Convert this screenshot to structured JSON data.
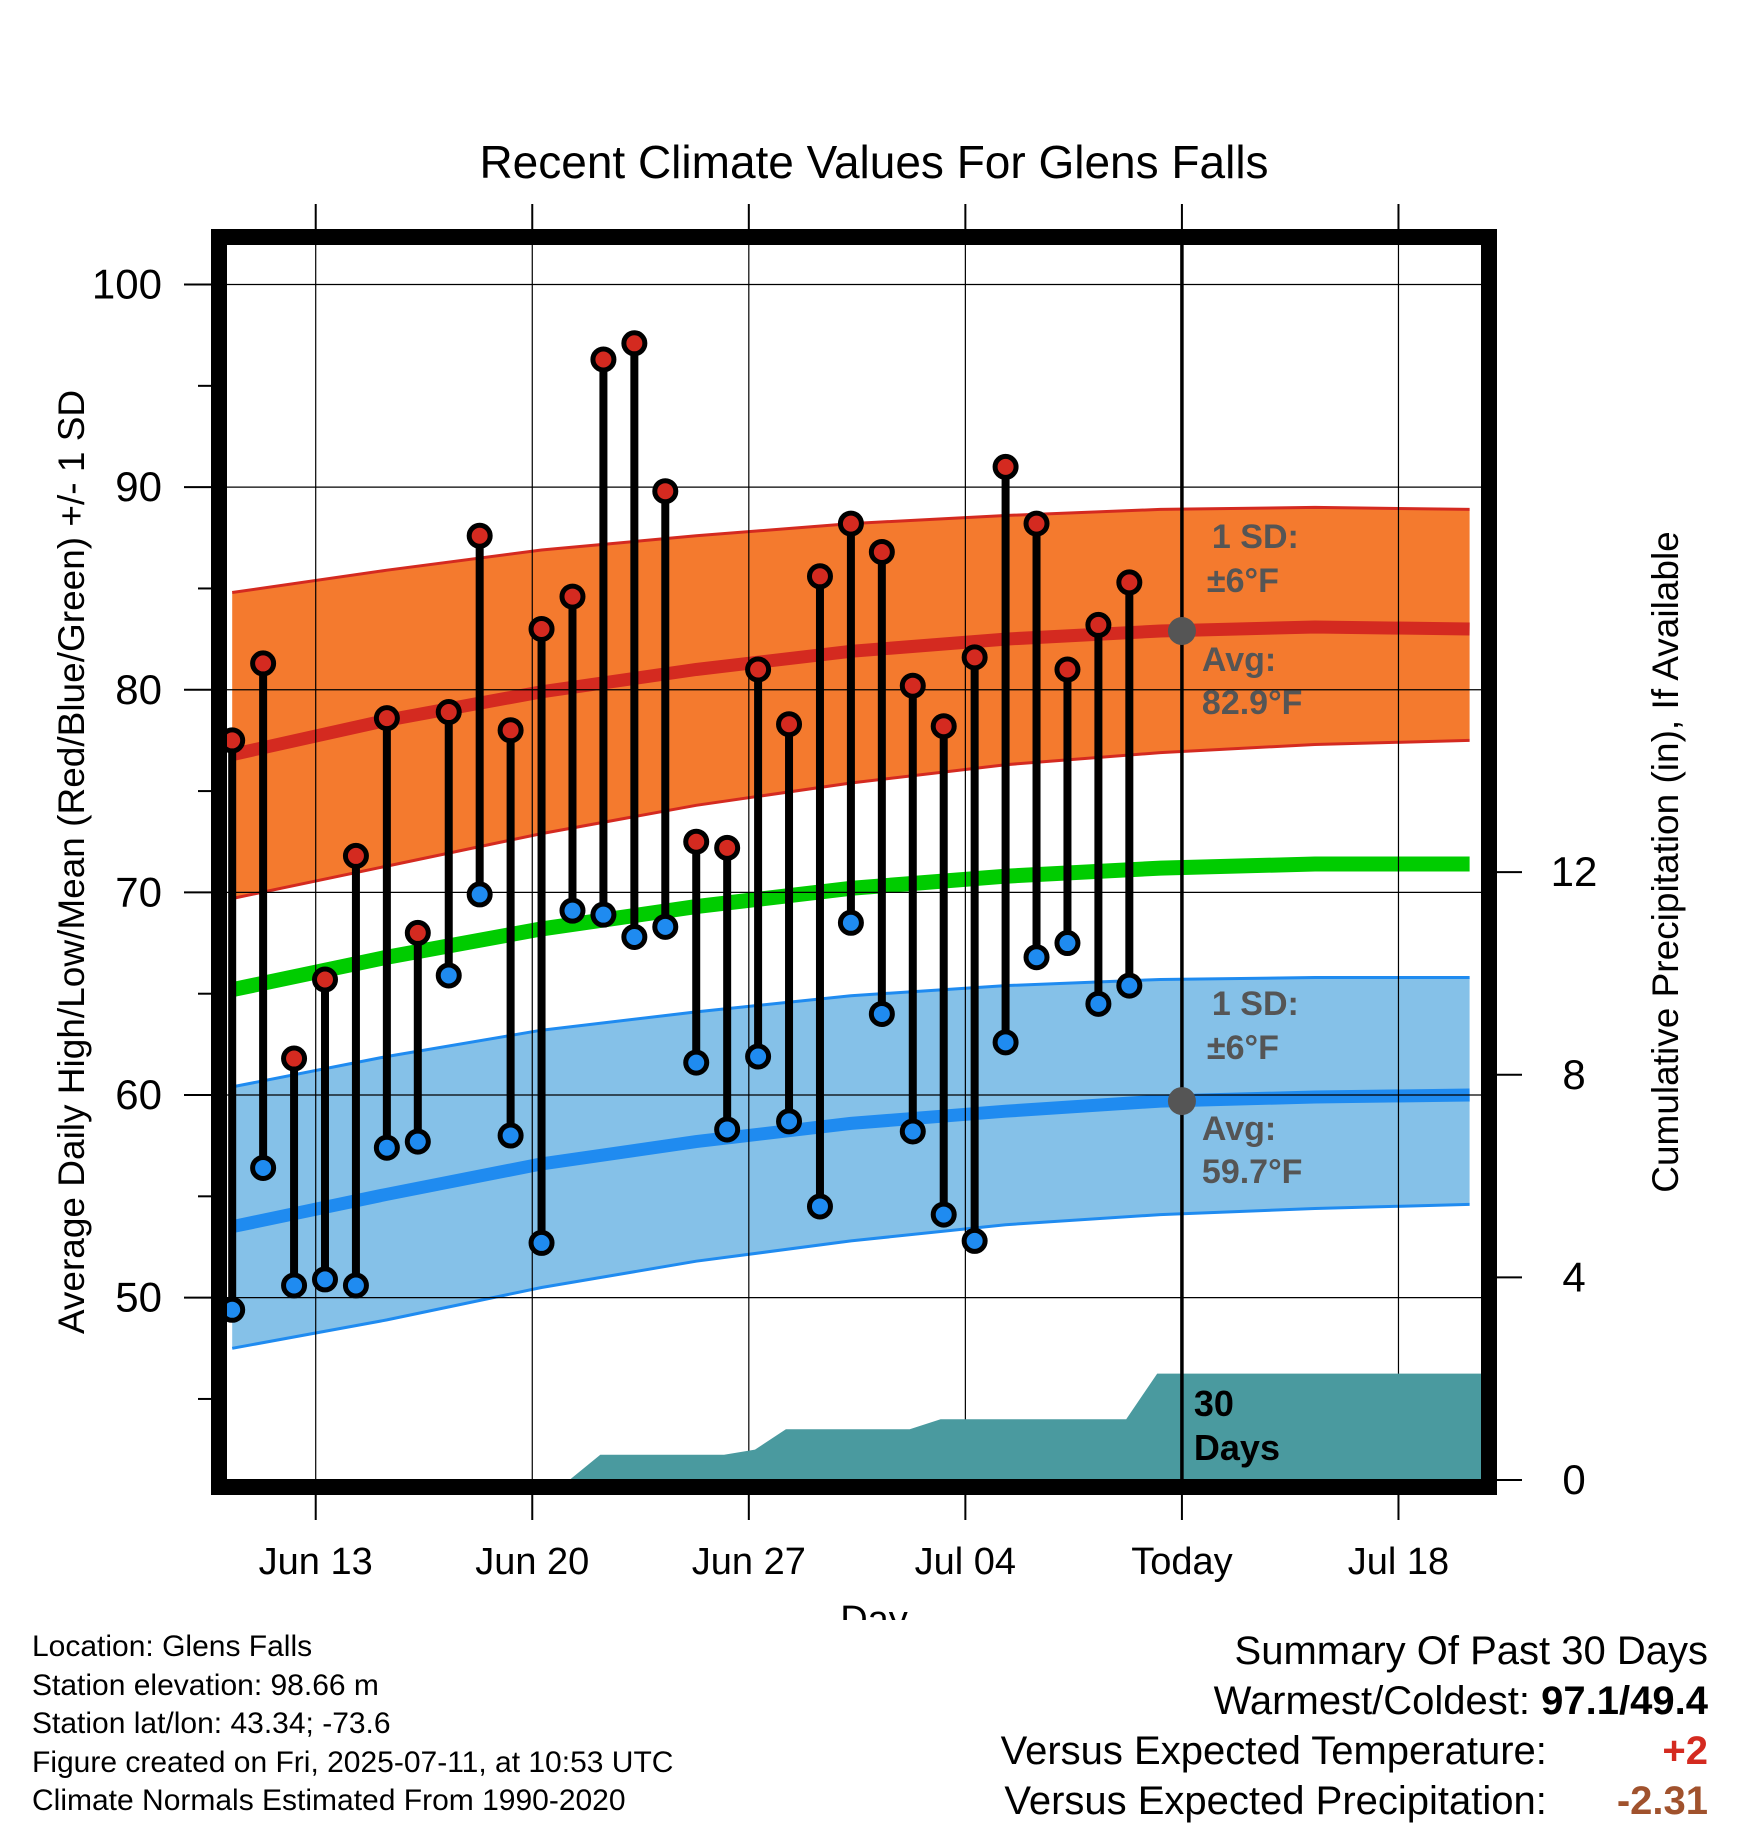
{
  "chart_data": {
    "type": "line",
    "title": "Recent Climate Values For Glens Falls",
    "xlabel": "Day",
    "ylabel": "Average Daily High/Low/Mean (Red/Blue/Green) +/- 1 SD",
    "y2label": "Cumulative Precipitation (in), If Available",
    "ylim": [
      41,
      102
    ],
    "y2lim": [
      0,
      24.4
    ],
    "xlim": [
      -0.2,
      40.4
    ],
    "x_ticks": [
      {
        "x": 2.7,
        "label": "Jun 13"
      },
      {
        "x": 9.7,
        "label": "Jun 20"
      },
      {
        "x": 16.7,
        "label": "Jun 27"
      },
      {
        "x": 23.7,
        "label": "Jul 04"
      },
      {
        "x": 30.7,
        "label": "Today"
      },
      {
        "x": 37.7,
        "label": "Jul 18"
      }
    ],
    "y_ticks": [
      50,
      60,
      70,
      80,
      90,
      100
    ],
    "y2_ticks": [
      0,
      4,
      8,
      12
    ],
    "grid": true,
    "today_x": 30.7,
    "daily_high": [
      77.5,
      81.3,
      61.8,
      65.7,
      71.8,
      78.6,
      68.0,
      78.9,
      87.6,
      78.0,
      83.0,
      84.6,
      96.3,
      97.1,
      89.8,
      72.5,
      72.2,
      81.0,
      78.3,
      85.6,
      88.2,
      86.8,
      80.2,
      78.2,
      81.6,
      91.0,
      88.2,
      81.0,
      83.2,
      85.3
    ],
    "daily_low": [
      49.4,
      56.4,
      50.6,
      50.9,
      50.6,
      57.4,
      57.7,
      65.9,
      69.9,
      58.0,
      52.7,
      69.1,
      68.9,
      67.8,
      68.3,
      61.6,
      58.3,
      61.9,
      58.7,
      54.5,
      68.5,
      64.0,
      58.2,
      54.1,
      52.8,
      62.6,
      66.8,
      67.5,
      64.5,
      65.4
    ],
    "normal_high_avg": {
      "x": [
        0,
        5,
        10,
        15,
        20,
        25,
        30,
        35,
        40
      ],
      "values": [
        76.8,
        78.5,
        79.9,
        81.0,
        81.9,
        82.5,
        82.9,
        83.1,
        83.0
      ]
    },
    "normal_high_upper": {
      "x": [
        0,
        5,
        10,
        15,
        20,
        25,
        30,
        35,
        40
      ],
      "values": [
        84.8,
        85.9,
        86.9,
        87.6,
        88.2,
        88.6,
        88.9,
        89.0,
        88.9
      ]
    },
    "normal_high_lower": {
      "x": [
        0,
        5,
        10,
        15,
        20,
        25,
        30,
        35,
        40
      ],
      "values": [
        69.7,
        71.3,
        72.9,
        74.3,
        75.4,
        76.3,
        76.9,
        77.3,
        77.5
      ]
    },
    "normal_mean": {
      "x": [
        0,
        5,
        10,
        15,
        20,
        25,
        30,
        35,
        40
      ],
      "values": [
        65.2,
        66.8,
        68.2,
        69.3,
        70.2,
        70.8,
        71.2,
        71.4,
        71.4
      ]
    },
    "normal_low_avg": {
      "x": [
        0,
        5,
        10,
        15,
        20,
        25,
        30,
        35,
        40
      ],
      "values": [
        53.5,
        55.1,
        56.6,
        57.7,
        58.6,
        59.2,
        59.7,
        59.9,
        60.0
      ]
    },
    "normal_low_upper": {
      "x": [
        0,
        5,
        10,
        15,
        20,
        25,
        30,
        35,
        40
      ],
      "values": [
        60.4,
        61.9,
        63.2,
        64.1,
        64.9,
        65.4,
        65.7,
        65.8,
        65.8
      ]
    },
    "normal_low_lower": {
      "x": [
        0,
        5,
        10,
        15,
        20,
        25,
        30,
        35,
        40
      ],
      "values": [
        47.5,
        48.9,
        50.5,
        51.8,
        52.8,
        53.6,
        54.1,
        54.4,
        54.6
      ]
    },
    "cumulative_precip": {
      "x": [
        10.9,
        11.9,
        12.9,
        13.9,
        14.9,
        15.9,
        16.9,
        17.9,
        18.9,
        19.9,
        20.9,
        21.9,
        22.9,
        23.9,
        24.9,
        25.9,
        26.9,
        27.9,
        28.9,
        29.9,
        30.9,
        40.4
      ],
      "values": [
        0.0,
        0.5,
        0.5,
        0.5,
        0.5,
        0.5,
        0.6,
        1.0,
        1.0,
        1.0,
        1.0,
        1.0,
        1.2,
        1.2,
        1.2,
        1.2,
        1.2,
        1.2,
        1.2,
        2.1,
        2.1,
        2.1
      ]
    },
    "annotations": {
      "high_sd_label": "1 SD:",
      "high_sd_value": "±6°F",
      "high_avg_label": "Avg:",
      "high_avg_value": "82.9°F",
      "low_sd_label": "1 SD:",
      "low_sd_value": "±6°F",
      "low_avg_label": "Avg:",
      "low_avg_value": "59.7°F",
      "precip_label_line1": "30",
      "precip_label_line2": "Days"
    },
    "colors": {
      "high_band": "#f47a2e",
      "high_band_edge": "#d42a20",
      "high_avg": "#d42a20",
      "mean": "#00cc00",
      "low_band": "#85c1e8",
      "low_band_edge": "#1f8bf0",
      "low_avg": "#1f8bf0",
      "precip": "#4a9a9f",
      "high_marker": "#d42a20",
      "low_marker": "#1f8bf0",
      "annotation_text": "#555555",
      "avg_dot": "#555555"
    }
  },
  "footer": {
    "location": "Location: Glens Falls",
    "elevation": "Station elevation: 98.66 m",
    "latlon": "Station lat/lon: 43.34; -73.6",
    "created": "Figure created on Fri, 2025-07-11, at 10:53 UTC",
    "normals": "Climate Normals Estimated From 1990-2020"
  },
  "summary": {
    "title": "Summary Of Past 30 Days",
    "warm_cold_label": "Warmest/Coldest:",
    "warmest": "97.1",
    "separator": "/",
    "coldest": "49.4",
    "temp_label": "Versus Expected Temperature:",
    "temp_value": "+2",
    "precip_label": "Versus Expected Precipitation:",
    "precip_value": "-2.31",
    "temp_color": "#d42a20",
    "precip_color": "#a0522d"
  }
}
